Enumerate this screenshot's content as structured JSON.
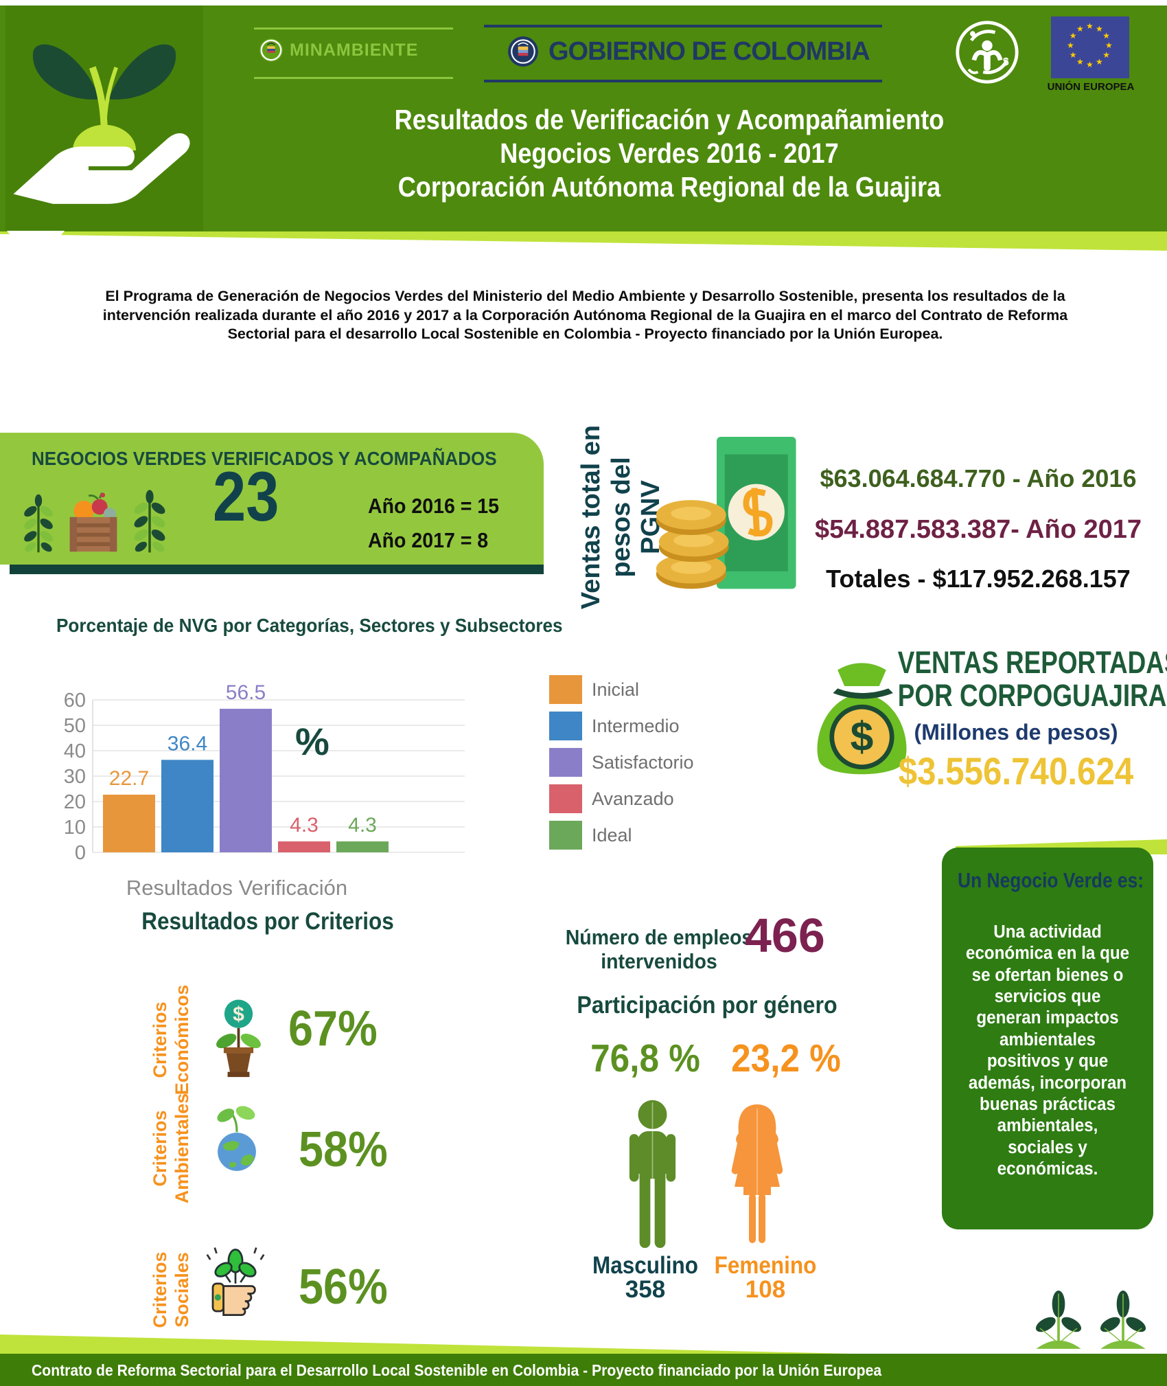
{
  "header": {
    "minambiente": "MINAMBIENTE",
    "gobierno": "GOBIERNO DE COLOMBIA",
    "eu_label": "UNIÓN EUROPEA",
    "title_line1": "Resultados de Verificación y Acompañamiento",
    "title_line2": "Negocios Verdes 2016 - 2017",
    "title_line3": "Corporación Autónoma Regional de la Guajira"
  },
  "intro": "El Programa de Generación de Negocios Verdes del Ministerio del Medio Ambiente y Desarrollo Sostenible, presenta los resultados de la intervención realizada durante el año 2016 y 2017 a la Corporación Autónoma Regional de la Guajira en el marco del Contrato de Reforma Sectorial para el desarrollo Local Sostenible en Colombia - Proyecto financiado por la Unión Europea.",
  "verified": {
    "title": "NEGOCIOS VERDES VERIFICADOS Y ACOMPAÑADOS",
    "total": "23",
    "year1": "Año 2016 = 15",
    "year2": "Año 2017 = 8"
  },
  "sales_pgnv": {
    "label_line1": "Ventas total en",
    "label_line2": "pesos del PGNV",
    "line_2016": "$63.064.684.770 - Año 2016",
    "line_2017": "$54.887.583.387- Año 2017",
    "line_total": "Totales - $117.952.268.157"
  },
  "chart": {
    "title": "Porcentaje de NVG por Categorías, Sectores y Subsectores",
    "percent_label": "%"
  },
  "chart_data": {
    "type": "bar",
    "title": "Porcentaje de NVG por Categorías, Sectores y Subsectores",
    "categories": [
      "Inicial",
      "Intermedio",
      "Satisfactorio",
      "Avanzado",
      "Ideal"
    ],
    "values": [
      22.7,
      36.4,
      56.5,
      4.3,
      4.3
    ],
    "colors": [
      "#E8963C",
      "#3E86C6",
      "#8B7EC8",
      "#D8616B",
      "#6CA85A"
    ],
    "xlabel": "Resultados Verificación",
    "ylabel": "%",
    "ylim": [
      0,
      60
    ],
    "yticks": [
      0,
      10,
      20,
      30,
      40,
      50,
      60
    ],
    "grid": true,
    "grid_color": "#E4E4E4",
    "legend_position": "right"
  },
  "corpoguajira": {
    "title_line1": "VENTAS REPORTADAS",
    "title_line2": "POR CORPOGUAJIRA",
    "subtitle": "(Millones de pesos)",
    "amount": "$3.556.740.624"
  },
  "green_business": {
    "title": "Un Negocio Verde es:",
    "body": "Una actividad\neconómica en la que\nse ofertan bienes o\nservicios que\ngeneran impactos\nambientales\npositivos y que\nademás, incorporan\nbuenas prácticas\nambientales,\nsociales y\neconómicas."
  },
  "criteria": {
    "title": "Resultados por Criterios",
    "items": [
      {
        "label_line1": "Criterios",
        "label_line2": "Económicos",
        "value": "67%"
      },
      {
        "label_line1": "Criterios",
        "label_line2": "Ambientales",
        "value": "58%"
      },
      {
        "label_line1": "Criterios",
        "label_line2": "Sociales",
        "value": "56%"
      }
    ]
  },
  "jobs": {
    "label_line1": "Número de empleos",
    "label_line2": "intervenidos",
    "value": "466"
  },
  "gender": {
    "title": "Participación por género",
    "male_pct": "76,8 %",
    "female_pct": "23,2 %",
    "male_label": "Masculino",
    "male_value": "358",
    "female_label": "Femenino",
    "female_value": "108"
  },
  "footer": "Contrato de Reforma Sectorial para el Desarrollo Local Sostenible en Colombia - Proyecto financiado por la Unión Europea",
  "colors": {
    "header_green": "#4E8A0D",
    "logo_square_green": "#478109",
    "lime": "#BFE33A",
    "box_lime": "#93C83E",
    "dark_bar": "#12433A",
    "teal_heading": "#174A3E",
    "slate_number": "#11424C",
    "navy": "#1F3864",
    "navy2": "#1D3A6E",
    "eu_blue": "#3B4697",
    "star_yellow": "#FFCC00",
    "minambiente_green": "#8CC63E",
    "sales_2016": "#3E601E",
    "sales_2017": "#6E2145",
    "sales_total": "#101010",
    "corpo_green": "#1D5B38",
    "gold": "#EEC335",
    "box2_green": "#2E7C12",
    "box2_title_navy": "#16395F",
    "orange": "#F6921E",
    "pct_green": "#5C9121",
    "maroon": "#7C2150",
    "male_green": "#5D8C28",
    "female_orange": "#F6953B",
    "footer_green": "#3E7D08",
    "axis_gray": "#8A8A8A",
    "legend_gray": "#6F6F6F"
  }
}
